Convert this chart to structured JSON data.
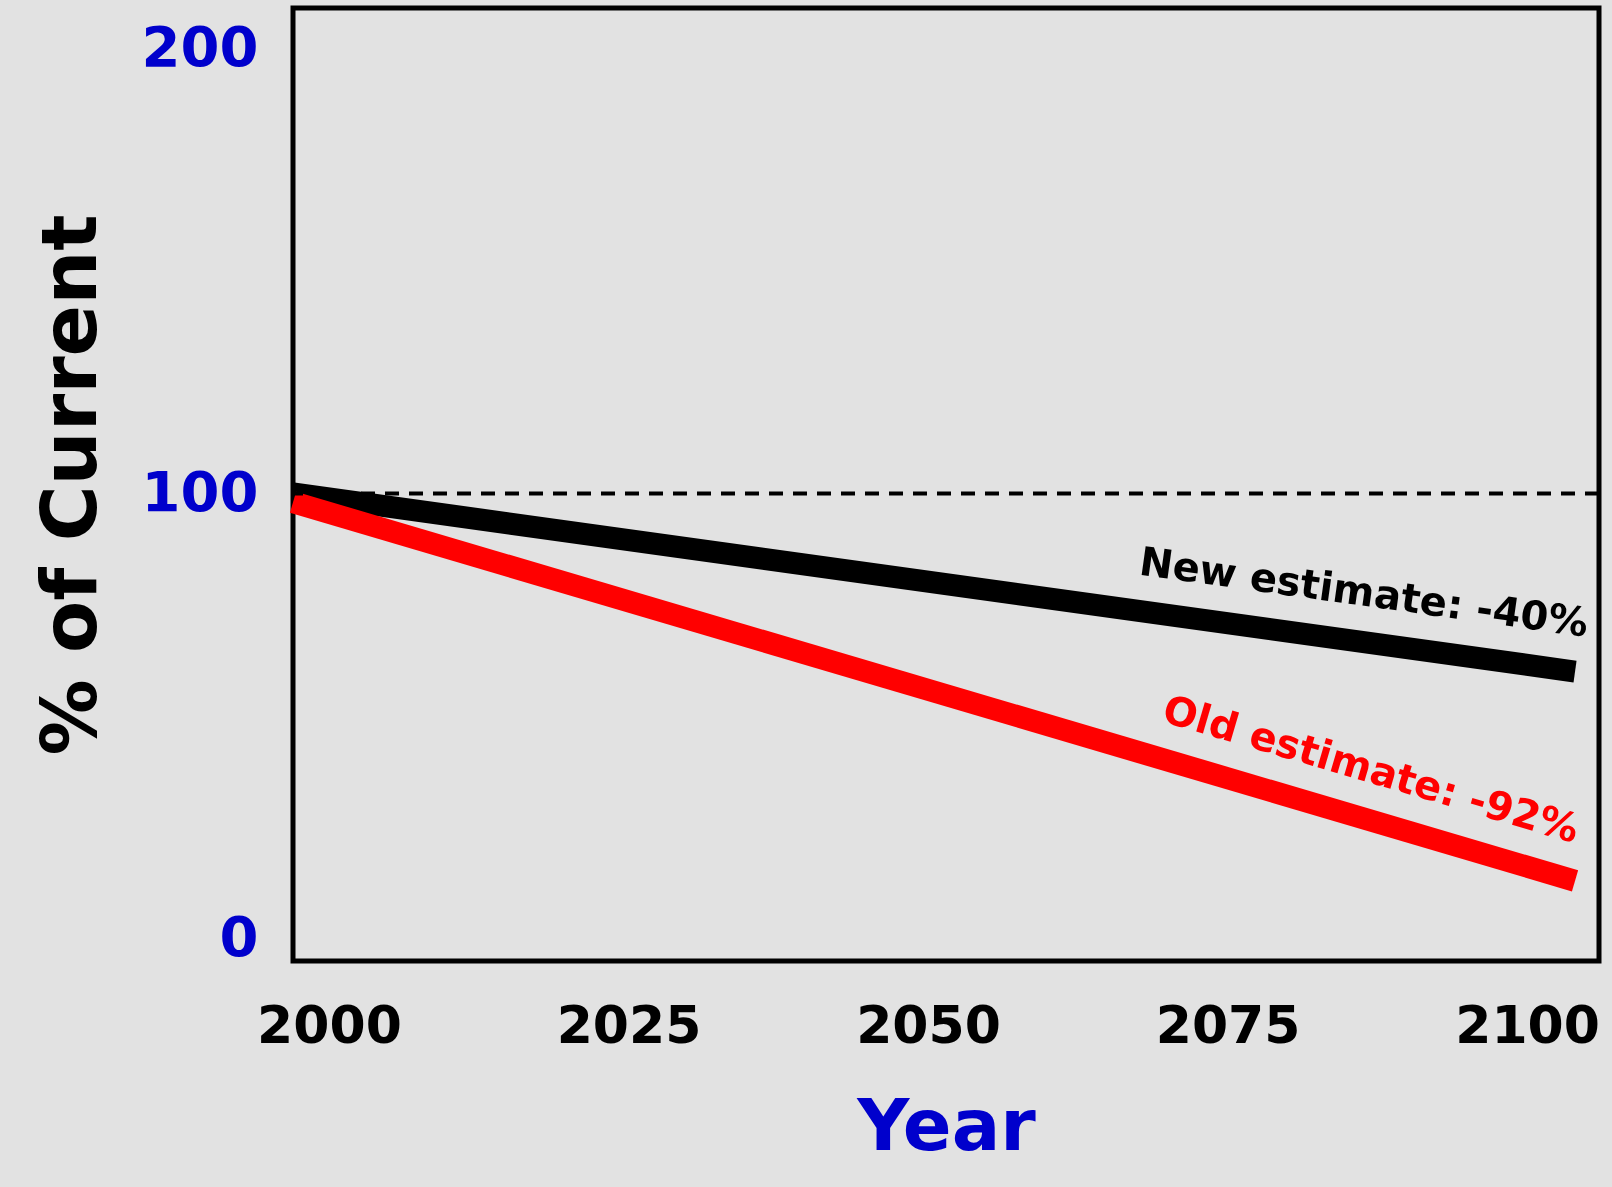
{
  "chart_data": {
    "type": "line",
    "xlabel": "Year",
    "ylabel": "% of Current",
    "x": [
      1997,
      2104
    ],
    "xlim": [
      1997,
      2106
    ],
    "xticks": [
      2000,
      2025,
      2050,
      2075,
      2100
    ],
    "ylim": [
      -5,
      209
    ],
    "yticks": [
      0,
      100,
      200
    ],
    "series": [
      {
        "name": "New estimate: -40%",
        "color": "#000000",
        "values": [
          100,
          60
        ]
      },
      {
        "name": "Old estimate: -92%",
        "color": "#ff0000",
        "values": [
          98,
          13
        ]
      }
    ],
    "ref_lines": [
      {
        "axis": "y",
        "value": 100,
        "color": "#000000",
        "line_style": "dashed"
      }
    ],
    "grid": false,
    "line_style": "solid"
  }
}
